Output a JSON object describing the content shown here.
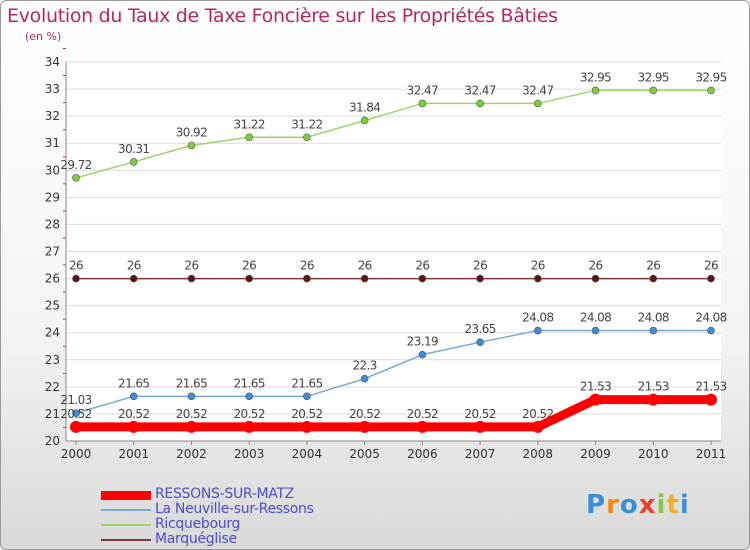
{
  "title": "Evolution du Taux de Taxe Foncière sur les Propriétés Bâties",
  "unit": "(en %)",
  "logo_text": "Proxiti",
  "chart_data": {
    "type": "line",
    "title": "Evolution du Taux de Taxe Foncière sur les Propriétés Bâties",
    "ylabel": "(en %)",
    "xlabel": "",
    "categories": [
      "2000",
      "2001",
      "2002",
      "2003",
      "2004",
      "2005",
      "2006",
      "2007",
      "2008",
      "2009",
      "2010",
      "2011"
    ],
    "ylim": [
      20,
      34
    ],
    "yticks": [
      20,
      21,
      22,
      23,
      24,
      25,
      26,
      27,
      28,
      29,
      30,
      31,
      32,
      33,
      34
    ],
    "grid": "horizontal",
    "series": [
      {
        "name": "RESSONS-SUR-MATZ",
        "color": "#ff0000",
        "values": [
          20.52,
          20.52,
          20.52,
          20.52,
          20.52,
          20.52,
          20.52,
          20.52,
          20.52,
          21.53,
          21.53,
          21.53
        ],
        "labels": [
          "20.52",
          "20.52",
          "20.52",
          "20.52",
          "20.52",
          "20.52",
          "20.52",
          "20.52",
          "20.52",
          "21.53",
          "21.53",
          "21.53"
        ]
      },
      {
        "name": "La Neuville-sur-Ressons",
        "color": "#7aa7d6",
        "values": [
          21.03,
          21.65,
          21.65,
          21.65,
          21.65,
          22.3,
          23.19,
          23.65,
          24.08,
          24.08,
          24.08,
          24.08
        ],
        "labels": [
          "21.03",
          "21.65",
          "21.65",
          "21.65",
          "21.65",
          "22.3",
          "23.19",
          "23.65",
          "24.08",
          "24.08",
          "24.08",
          "24.08"
        ]
      },
      {
        "name": "Ricquebourg",
        "color": "#9ed46a",
        "values": [
          29.72,
          30.31,
          30.92,
          31.22,
          31.22,
          31.84,
          32.47,
          32.47,
          32.47,
          32.95,
          32.95,
          32.95
        ],
        "labels": [
          "29.72",
          "30.31",
          "30.92",
          "31.22",
          "31.22",
          "31.84",
          "32.47",
          "32.47",
          "32.47",
          "32.95",
          "32.95",
          "32.95"
        ]
      },
      {
        "name": "Marquéglise",
        "color": "#7a3a3a",
        "values": [
          26,
          26,
          26,
          26,
          26,
          26,
          26,
          26,
          26,
          26,
          26,
          26
        ],
        "labels": [
          "26",
          "26",
          "26",
          "26",
          "26",
          "26",
          "26",
          "26",
          "26",
          "26",
          "26",
          "26"
        ]
      }
    ]
  }
}
